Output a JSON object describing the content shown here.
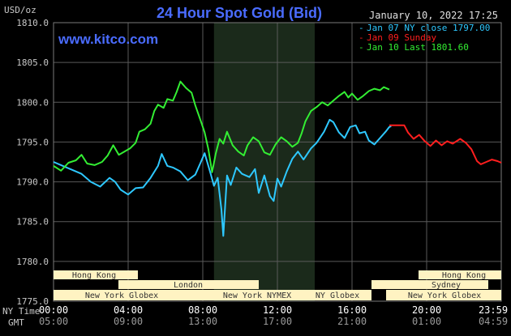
{
  "header": {
    "unit": "USD/oz",
    "title": "24 Hour Spot Gold (Bid)",
    "timestamp": "January 10, 2022 17:25",
    "watermark": "www.kitco.com"
  },
  "colors": {
    "background": "#000000",
    "title": "#4a6cff",
    "watermark": "#4a6cff",
    "grid": "#5a5a5a",
    "axis_text": "#c8c8c8",
    "session_shade": "#1b2a1b",
    "jan07": "#2ec8ff",
    "jan09": "#ff1e1e",
    "jan10": "#33ee33",
    "market_fill": "#fff3c2",
    "market_text": "#333333"
  },
  "legend": [
    {
      "label": "Jan 07 NY close 1797.00",
      "color_key": "jan07"
    },
    {
      "label": "Jan 09 Sunday",
      "color_key": "jan09"
    },
    {
      "label": "Jan 10 Last 1801.60",
      "color_key": "jan10"
    }
  ],
  "time_axis": {
    "ny_label": "NY Time",
    "gmt_label": "GMT",
    "ny_ticks": [
      "00:00",
      "04:00",
      "08:00",
      "12:00",
      "16:00",
      "20:00",
      "23:59"
    ],
    "gmt_ticks": [
      "05:00",
      "09:00",
      "13:00",
      "17:00",
      "21:00",
      "01:00",
      "04:59"
    ]
  },
  "markets": {
    "row1": [
      "Hong Kong",
      "Hong Kong"
    ],
    "row2": [
      "London",
      "Sydney"
    ],
    "row3": [
      "New York Globex",
      "New York NYMEX",
      "NY Globex",
      "New York Globex"
    ]
  },
  "chart_data": {
    "type": "line",
    "title": "24 Hour Spot Gold (Bid)",
    "ylabel": "USD/oz",
    "ylim": [
      1775,
      1810
    ],
    "xlim": [
      0,
      24
    ],
    "y_ticks": [
      "1775.0",
      "1780.0",
      "1785.0",
      "1790.0",
      "1795.0",
      "1800.0",
      "1805.0",
      "1810.0"
    ],
    "shaded_session_hours": [
      8.6,
      14.0
    ],
    "grid": true,
    "legend_position": "top-right",
    "series": [
      {
        "name": "Jan 07 NY close 1797.00",
        "color_key": "jan07",
        "points": [
          [
            0,
            1792.5
          ],
          [
            0.5,
            1792
          ],
          [
            1,
            1791.5
          ],
          [
            1.5,
            1791
          ],
          [
            2,
            1790
          ],
          [
            2.5,
            1789.4
          ],
          [
            3,
            1790.5
          ],
          [
            3.3,
            1790
          ],
          [
            3.6,
            1789
          ],
          [
            4,
            1788.4
          ],
          [
            4.4,
            1789.2
          ],
          [
            4.8,
            1789.3
          ],
          [
            5.2,
            1790.5
          ],
          [
            5.6,
            1792
          ],
          [
            5.8,
            1793.5
          ],
          [
            6.1,
            1792
          ],
          [
            6.4,
            1791.8
          ],
          [
            6.8,
            1791.3
          ],
          [
            7.2,
            1790.2
          ],
          [
            7.6,
            1790.9
          ],
          [
            7.9,
            1792.5
          ],
          [
            8.1,
            1793.6
          ],
          [
            8.4,
            1791.2
          ],
          [
            8.6,
            1789.5
          ],
          [
            8.8,
            1790.5
          ],
          [
            9.0,
            1786.5
          ],
          [
            9.1,
            1783.2
          ],
          [
            9.3,
            1790.8
          ],
          [
            9.5,
            1789.6
          ],
          [
            9.8,
            1791.8
          ],
          [
            10.1,
            1791
          ],
          [
            10.5,
            1790.6
          ],
          [
            10.8,
            1791.6
          ],
          [
            11.0,
            1788.6
          ],
          [
            11.3,
            1790.8
          ],
          [
            11.6,
            1788.2
          ],
          [
            11.8,
            1787.6
          ],
          [
            12.0,
            1790.4
          ],
          [
            12.2,
            1789.4
          ],
          [
            12.5,
            1791.3
          ],
          [
            12.8,
            1792.9
          ],
          [
            13.1,
            1793.8
          ],
          [
            13.4,
            1792.8
          ],
          [
            13.8,
            1794.2
          ],
          [
            14.1,
            1794.9
          ],
          [
            14.5,
            1796.3
          ],
          [
            14.8,
            1797.8
          ],
          [
            15.0,
            1797.5
          ],
          [
            15.3,
            1796.2
          ],
          [
            15.6,
            1795.5
          ],
          [
            15.9,
            1796.9
          ],
          [
            16.2,
            1797.1
          ],
          [
            16.4,
            1796.1
          ],
          [
            16.7,
            1796.3
          ],
          [
            16.9,
            1795.2
          ],
          [
            17.2,
            1794.7
          ],
          [
            17.5,
            1795.5
          ],
          [
            17.8,
            1796.3
          ],
          [
            18.0,
            1796.9
          ],
          [
            18.1,
            1797.0
          ]
        ]
      },
      {
        "name": "Jan 09 Sunday",
        "color_key": "jan09",
        "points": [
          [
            18.0,
            1797.1
          ],
          [
            18.8,
            1797.1
          ],
          [
            19.0,
            1796.2
          ],
          [
            19.3,
            1795.4
          ],
          [
            19.6,
            1795.9
          ],
          [
            19.9,
            1795.1
          ],
          [
            20.2,
            1794.5
          ],
          [
            20.5,
            1795.2
          ],
          [
            20.8,
            1794.6
          ],
          [
            21.1,
            1795.1
          ],
          [
            21.4,
            1794.8
          ],
          [
            21.8,
            1795.4
          ],
          [
            22.1,
            1794.9
          ],
          [
            22.4,
            1794.1
          ],
          [
            22.7,
            1792.6
          ],
          [
            22.9,
            1792.2
          ],
          [
            23.2,
            1792.5
          ],
          [
            23.5,
            1792.8
          ],
          [
            23.8,
            1792.6
          ],
          [
            24.0,
            1792.4
          ]
        ]
      },
      {
        "name": "Jan 10 Last 1801.60",
        "color_key": "jan10",
        "points": [
          [
            0,
            1792
          ],
          [
            0.4,
            1791.4
          ],
          [
            0.8,
            1792.4
          ],
          [
            1.2,
            1792.7
          ],
          [
            1.5,
            1793.4
          ],
          [
            1.8,
            1792.3
          ],
          [
            2.2,
            1792.1
          ],
          [
            2.6,
            1792.5
          ],
          [
            2.9,
            1793.3
          ],
          [
            3.2,
            1794.6
          ],
          [
            3.5,
            1793.4
          ],
          [
            3.8,
            1793.8
          ],
          [
            4.1,
            1794.2
          ],
          [
            4.4,
            1794.9
          ],
          [
            4.6,
            1796.3
          ],
          [
            4.9,
            1796.6
          ],
          [
            5.2,
            1797.3
          ],
          [
            5.4,
            1798.9
          ],
          [
            5.6,
            1799.7
          ],
          [
            5.9,
            1799.3
          ],
          [
            6.1,
            1800.4
          ],
          [
            6.4,
            1800.2
          ],
          [
            6.6,
            1801.3
          ],
          [
            6.8,
            1802.6
          ],
          [
            7.1,
            1801.8
          ],
          [
            7.4,
            1801.2
          ],
          [
            7.6,
            1799.6
          ],
          [
            7.9,
            1797.6
          ],
          [
            8.1,
            1796.2
          ],
          [
            8.3,
            1794.1
          ],
          [
            8.5,
            1791.2
          ],
          [
            8.7,
            1793.6
          ],
          [
            8.9,
            1795.4
          ],
          [
            9.1,
            1794.8
          ],
          [
            9.3,
            1796.3
          ],
          [
            9.6,
            1794.6
          ],
          [
            9.9,
            1793.8
          ],
          [
            10.2,
            1793.3
          ],
          [
            10.4,
            1794.6
          ],
          [
            10.7,
            1795.6
          ],
          [
            11.0,
            1795.1
          ],
          [
            11.3,
            1793.7
          ],
          [
            11.6,
            1793.4
          ],
          [
            11.9,
            1794.7
          ],
          [
            12.2,
            1795.6
          ],
          [
            12.5,
            1795.1
          ],
          [
            12.8,
            1794.4
          ],
          [
            13.1,
            1794.9
          ],
          [
            13.3,
            1796.1
          ],
          [
            13.5,
            1797.6
          ],
          [
            13.8,
            1798.9
          ],
          [
            14.1,
            1799.4
          ],
          [
            14.4,
            1800.0
          ],
          [
            14.7,
            1799.6
          ],
          [
            15.0,
            1800.2
          ],
          [
            15.3,
            1800.8
          ],
          [
            15.6,
            1801.3
          ],
          [
            15.8,
            1800.6
          ],
          [
            16.0,
            1801.1
          ],
          [
            16.3,
            1800.3
          ],
          [
            16.6,
            1800.8
          ],
          [
            16.9,
            1801.4
          ],
          [
            17.2,
            1801.7
          ],
          [
            17.5,
            1801.5
          ],
          [
            17.7,
            1801.9
          ],
          [
            17.9,
            1801.7
          ],
          [
            18.0,
            1801.6
          ]
        ]
      }
    ]
  }
}
